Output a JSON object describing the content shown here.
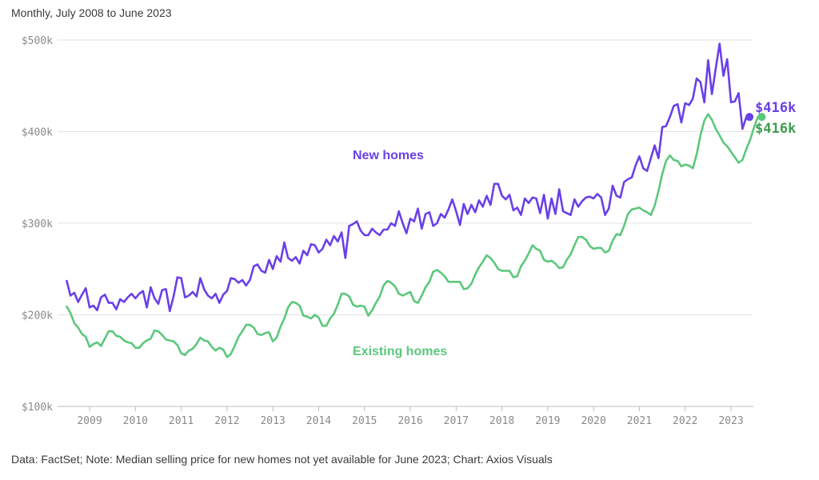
{
  "subtitle": "Monthly, July 2008 to June 2023",
  "source": "Data: FactSet; Note: Median selling price for new homes not yet available for June 2023; Chart: Axios Visuals",
  "colors": {
    "new_homes": "#6a40e8",
    "existing_homes": "#5cc77c",
    "existing_label": "#3f9c4f"
  },
  "chart_data": {
    "type": "line",
    "title": "",
    "xlabel": "",
    "ylabel": "",
    "x_start": "2008-07",
    "x_end": "2023-06",
    "ylim": [
      100000,
      500000
    ],
    "y_ticks": [
      100000,
      200000,
      300000,
      400000,
      500000
    ],
    "y_tick_labels": [
      "$100k",
      "$200k",
      "$300k",
      "$400k",
      "$500k"
    ],
    "x_tick_labels": [
      "2009",
      "2010",
      "2011",
      "2012",
      "2013",
      "2014",
      "2015",
      "2016",
      "2017",
      "2018",
      "2019",
      "2020",
      "2021",
      "2022",
      "2023"
    ],
    "grid": true,
    "series": [
      {
        "name": "New homes",
        "start": "2008-07",
        "end_label": "$416k",
        "values": [
          237000,
          221000,
          224000,
          214000,
          222000,
          229000,
          208000,
          210000,
          205000,
          219000,
          222000,
          213000,
          213000,
          206000,
          217000,
          214000,
          219000,
          223000,
          218000,
          223000,
          226000,
          208000,
          230000,
          218000,
          212000,
          227000,
          228000,
          204000,
          220000,
          241000,
          240000,
          219000,
          221000,
          225000,
          220000,
          240000,
          228000,
          221000,
          218000,
          223000,
          213000,
          222000,
          226000,
          240000,
          239000,
          235000,
          238000,
          232000,
          238000,
          253000,
          255000,
          248000,
          246000,
          260000,
          250000,
          264000,
          258000,
          279000,
          262000,
          259000,
          263000,
          256000,
          270000,
          265000,
          277000,
          276000,
          268000,
          272000,
          282000,
          276000,
          286000,
          280000,
          290000,
          262000,
          297000,
          299000,
          302000,
          292000,
          287000,
          287000,
          294000,
          290000,
          287000,
          293000,
          293000,
          300000,
          297000,
          313000,
          300000,
          289000,
          305000,
          302000,
          316000,
          294000,
          310000,
          312000,
          297000,
          300000,
          310000,
          306000,
          315000,
          326000,
          313000,
          298000,
          321000,
          310000,
          320000,
          312000,
          325000,
          318000,
          330000,
          320000,
          343000,
          343000,
          330000,
          326000,
          331000,
          314000,
          317000,
          309000,
          327000,
          322000,
          328000,
          327000,
          311000,
          331000,
          305000,
          327000,
          310000,
          337000,
          313000,
          311000,
          309000,
          326000,
          318000,
          324000,
          328000,
          329000,
          327000,
          332000,
          328000,
          309000,
          316000,
          341000,
          330000,
          328000,
          345000,
          348000,
          350000,
          363000,
          373000,
          360000,
          357000,
          371000,
          385000,
          371000,
          405000,
          406000,
          416000,
          428000,
          430000,
          410000,
          431000,
          429000,
          436000,
          458000,
          454000,
          432000,
          478000,
          441000,
          469000,
          496000,
          461000,
          479000,
          432000,
          433000,
          442000,
          403000,
          416000
        ]
      },
      {
        "name": "Existing homes",
        "start": "2008-07",
        "end_label": "$416k",
        "values": [
          209000,
          202000,
          191000,
          186000,
          179000,
          176000,
          165000,
          168000,
          170000,
          166000,
          174000,
          182000,
          182000,
          177000,
          176000,
          172000,
          170000,
          169000,
          164000,
          164000,
          169000,
          172000,
          174000,
          183000,
          182000,
          178000,
          173000,
          172000,
          171000,
          167000,
          158000,
          156000,
          161000,
          163000,
          168000,
          175000,
          172000,
          171000,
          165000,
          161000,
          164000,
          162000,
          154000,
          157000,
          166000,
          176000,
          182000,
          189000,
          189000,
          186000,
          179000,
          178000,
          180000,
          181000,
          171000,
          175000,
          187000,
          196000,
          208000,
          214000,
          213000,
          210000,
          199000,
          198000,
          196000,
          200000,
          197000,
          188000,
          188000,
          196000,
          201000,
          211000,
          223000,
          223000,
          220000,
          211000,
          209000,
          210000,
          209000,
          199000,
          205000,
          213000,
          220000,
          232000,
          237000,
          235000,
          231000,
          223000,
          221000,
          223000,
          225000,
          215000,
          213000,
          221000,
          230000,
          236000,
          247000,
          249000,
          246000,
          242000,
          236000,
          236000,
          236000,
          236000,
          228000,
          229000,
          234000,
          244000,
          252000,
          258000,
          265000,
          262000,
          257000,
          250000,
          248000,
          248000,
          248000,
          241000,
          242000,
          253000,
          259000,
          267000,
          276000,
          272000,
          270000,
          260000,
          258000,
          259000,
          256000,
          251000,
          252000,
          260000,
          266000,
          276000,
          285000,
          285000,
          282000,
          275000,
          272000,
          273000,
          273000,
          268000,
          270000,
          281000,
          288000,
          287000,
          297000,
          310000,
          315000,
          316000,
          317000,
          314000,
          312000,
          309000,
          319000,
          335000,
          354000,
          368000,
          374000,
          369000,
          368000,
          362000,
          364000,
          363000,
          360000,
          375000,
          396000,
          412000,
          419000,
          413000,
          403000,
          396000,
          388000,
          384000,
          378000,
          372000,
          366000,
          369000,
          381000,
          391000,
          404000,
          416000
        ]
      }
    ],
    "annotations": [
      {
        "text": "New homes",
        "series": "New homes"
      },
      {
        "text": "Existing homes",
        "series": "Existing homes"
      }
    ]
  }
}
